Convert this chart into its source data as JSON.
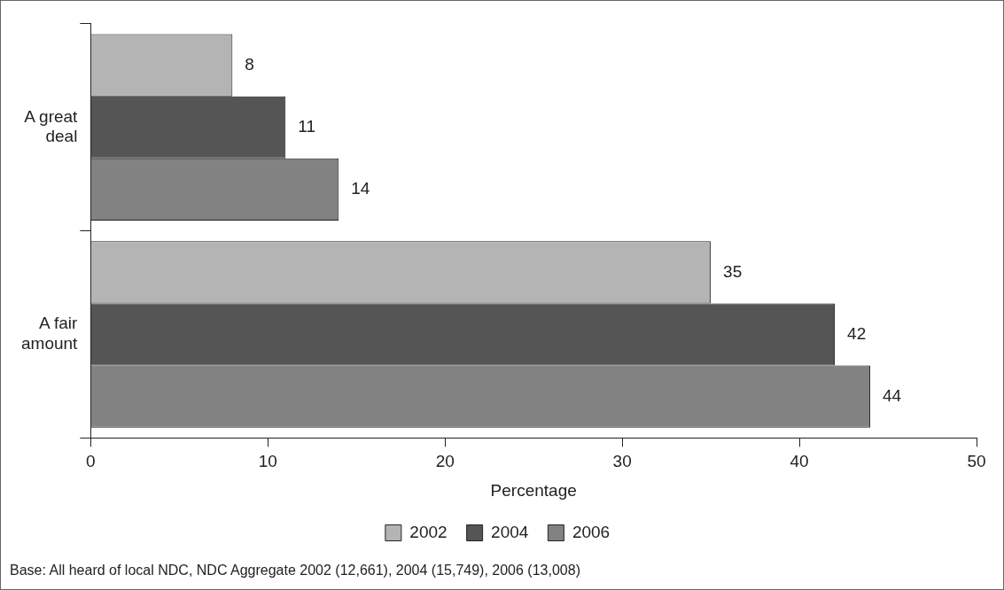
{
  "chart_data": {
    "type": "bar",
    "orientation": "horizontal",
    "categories": [
      "A great deal",
      "A fair amount"
    ],
    "series": [
      {
        "name": "2002",
        "color": "#b4b4b4",
        "values": [
          8,
          35
        ]
      },
      {
        "name": "2004",
        "color": "#555555",
        "values": [
          11,
          42
        ]
      },
      {
        "name": "2006",
        "color": "#828282",
        "values": [
          14,
          44
        ]
      }
    ],
    "xlabel": "Percentage",
    "xlim": [
      0,
      50
    ],
    "xticks": [
      0,
      10,
      20,
      30,
      40,
      50
    ],
    "data_labels": true,
    "grid": false,
    "legend": "bottom",
    "annotations": [
      "Base: All heard of local NDC, NDC Aggregate 2002 (12,661), 2004 (15,749), 2006 (13,008)"
    ]
  }
}
